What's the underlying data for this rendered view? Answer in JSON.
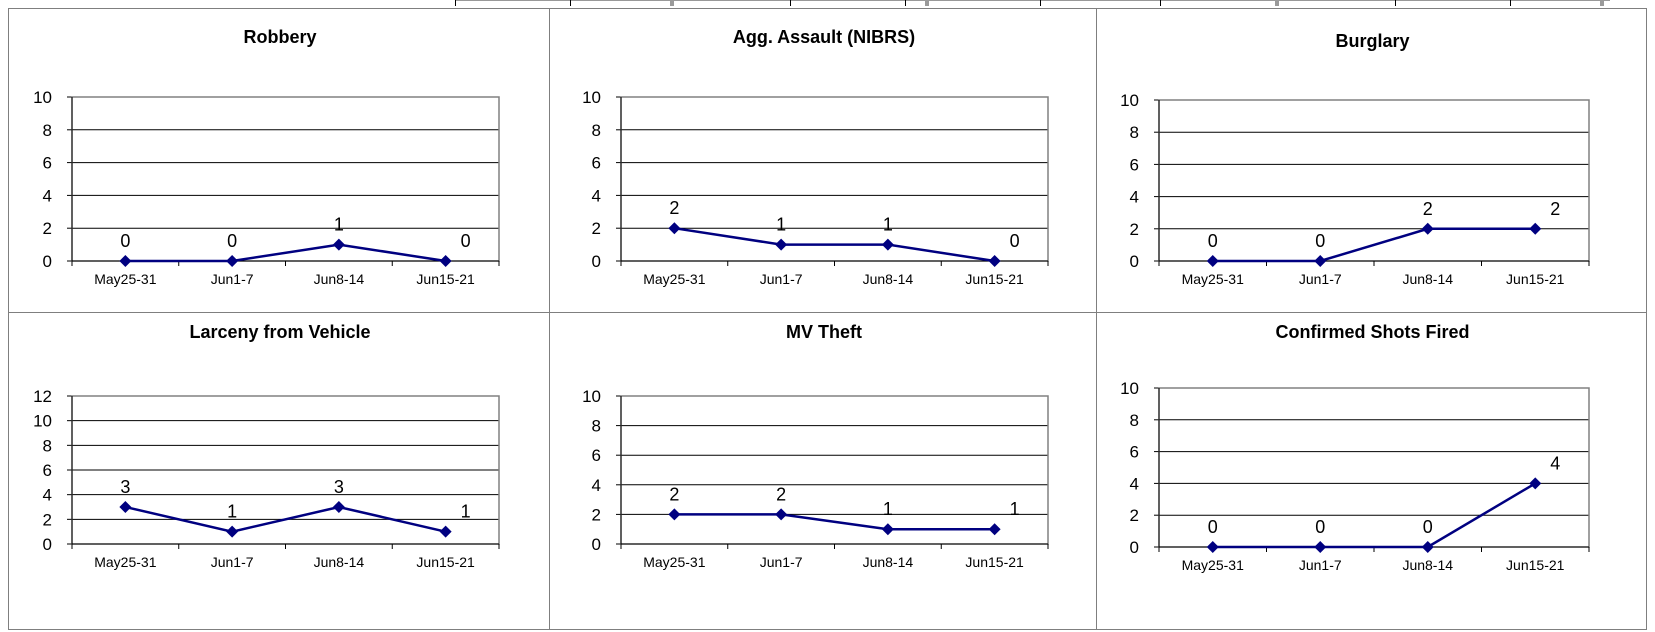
{
  "colors": {
    "series": "#000080",
    "grid": "#000000",
    "plot_border": "#808080"
  },
  "chart_data": [
    {
      "type": "line",
      "title": "Robbery",
      "categories": [
        "May25-31",
        "Jun1-7",
        "Jun8-14",
        "Jun15-21"
      ],
      "values": [
        0,
        0,
        1,
        0
      ],
      "ylim": [
        0,
        10
      ],
      "yticks": [
        0,
        2,
        4,
        6,
        8,
        10
      ],
      "grid": true,
      "marker": "diamond"
    },
    {
      "type": "line",
      "title": "Agg. Assault (NIBRS)",
      "categories": [
        "May25-31",
        "Jun1-7",
        "Jun8-14",
        "Jun15-21"
      ],
      "values": [
        2,
        1,
        1,
        0
      ],
      "ylim": [
        0,
        10
      ],
      "yticks": [
        0,
        2,
        4,
        6,
        8,
        10
      ],
      "grid": true,
      "marker": "diamond"
    },
    {
      "type": "line",
      "title": "Burglary",
      "categories": [
        "May25-31",
        "Jun1-7",
        "Jun8-14",
        "Jun15-21"
      ],
      "values": [
        0,
        0,
        2,
        2
      ],
      "ylim": [
        0,
        10
      ],
      "yticks": [
        0,
        2,
        4,
        6,
        8,
        10
      ],
      "grid": true,
      "marker": "diamond"
    },
    {
      "type": "line",
      "title": "Larceny from Vehicle",
      "categories": [
        "May25-31",
        "Jun1-7",
        "Jun8-14",
        "Jun15-21"
      ],
      "values": [
        3,
        1,
        3,
        1
      ],
      "ylim": [
        0,
        12
      ],
      "yticks": [
        0,
        2,
        4,
        6,
        8,
        10,
        12
      ],
      "grid": true,
      "marker": "diamond"
    },
    {
      "type": "line",
      "title": "MV Theft",
      "categories": [
        "May25-31",
        "Jun1-7",
        "Jun8-14",
        "Jun15-21"
      ],
      "values": [
        2,
        2,
        1,
        1
      ],
      "ylim": [
        0,
        10
      ],
      "yticks": [
        0,
        2,
        4,
        6,
        8,
        10
      ],
      "grid": true,
      "marker": "diamond"
    },
    {
      "type": "line",
      "title": "Confirmed Shots Fired",
      "categories": [
        "May25-31",
        "Jun1-7",
        "Jun8-14",
        "Jun15-21"
      ],
      "values": [
        0,
        0,
        0,
        4
      ],
      "ylim": [
        0,
        10
      ],
      "yticks": [
        0,
        2,
        4,
        6,
        8,
        10
      ],
      "grid": true,
      "marker": "diamond"
    }
  ]
}
